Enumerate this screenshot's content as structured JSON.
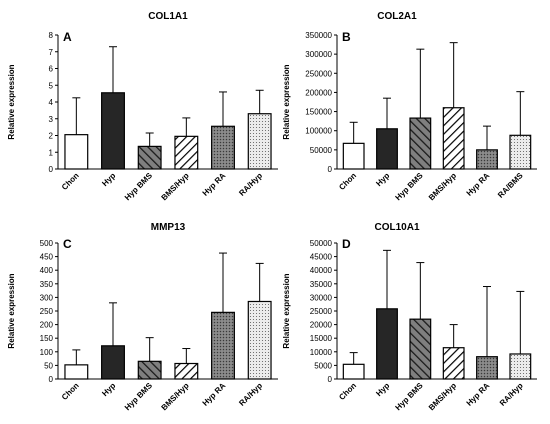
{
  "patterns": [
    "none",
    "solid",
    "diag-left",
    "diag-right",
    "dots-dense",
    "dots-light"
  ],
  "colors": {
    "solid": "#262626",
    "diag_left_bg": "#7f7f7f",
    "diag_left_line": "#1a1a1a",
    "diag_right_line": "#000000",
    "dots_dense_bg": "#8c8c8c",
    "dots_light_bg": "#ececec"
  },
  "chart_data": [
    {
      "type": "bar",
      "panel_label": "A",
      "title": "COL1A1",
      "ylabel": "Relative expression",
      "categories": [
        "Chon",
        "Hyp",
        "Hyp BMS",
        "BMS/Hyp",
        "Hyp RA",
        "RA/Hyp"
      ],
      "values": [
        2.05,
        4.55,
        1.35,
        1.95,
        2.55,
        3.3
      ],
      "errors": [
        2.2,
        2.75,
        0.8,
        1.1,
        2.05,
        1.4
      ],
      "ylim": [
        0,
        8
      ],
      "yticks": [
        "0",
        "1",
        "2",
        "3",
        "4",
        "5",
        "6",
        "7",
        "8"
      ],
      "grid": false,
      "legend": "none"
    },
    {
      "type": "bar",
      "panel_label": "B",
      "title": "COL2A1",
      "ylabel": "Relative expression",
      "categories": [
        "Chon",
        "Hyp",
        "Hyp BMS",
        "BMS/Hyp",
        "Hyp RA",
        "RA/BMS"
      ],
      "values": [
        67000,
        105000,
        133000,
        160000,
        50000,
        88000
      ],
      "errors": [
        55000,
        80000,
        180000,
        170000,
        62000,
        114000
      ],
      "ylim": [
        0,
        350000
      ],
      "yticks": [
        "0",
        "50000",
        "100000",
        "150000",
        "200000",
        "250000",
        "300000",
        "350000"
      ],
      "grid": false,
      "legend": "none"
    },
    {
      "type": "bar",
      "panel_label": "C",
      "title": "MMP13",
      "ylabel": "Relative expression",
      "categories": [
        "Chon",
        "Hyp",
        "Hyp BMS",
        "BMS/Hyp",
        "Hyp RA",
        "RA/Hyp"
      ],
      "values": [
        52,
        122,
        65,
        57,
        245,
        285
      ],
      "errors": [
        55,
        158,
        87,
        55,
        218,
        140
      ],
      "ylim": [
        0,
        500
      ],
      "yticks": [
        "0",
        "50",
        "100",
        "150",
        "200",
        "250",
        "300",
        "350",
        "400",
        "450",
        "500"
      ],
      "grid": false,
      "legend": "none"
    },
    {
      "type": "bar",
      "panel_label": "D",
      "title": "COL10A1",
      "ylabel": "Relative expression",
      "categories": [
        "Chon",
        "Hyp",
        "Hyp BMS",
        "BMS/Hyp",
        "Hyp RA",
        "RA/Hyp"
      ],
      "values": [
        5400,
        25800,
        22000,
        11500,
        8200,
        9200
      ],
      "errors": [
        4300,
        21500,
        20800,
        8500,
        25800,
        23000
      ],
      "ylim": [
        0,
        50000
      ],
      "yticks": [
        "0",
        "5000",
        "10000",
        "15000",
        "20000",
        "25000",
        "30000",
        "35000",
        "40000",
        "45000",
        "50000"
      ],
      "grid": false,
      "legend": "none"
    }
  ]
}
